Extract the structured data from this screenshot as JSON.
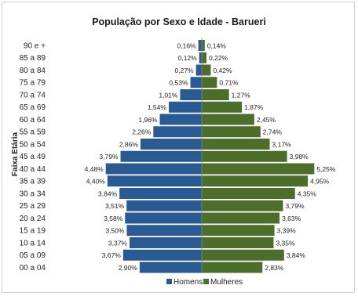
{
  "chart_data": {
    "type": "bar",
    "title": "População por Sexo e Idade - Barueri",
    "ylabel": "Faixa Etária",
    "xlabel": "",
    "categories": [
      "90 e +",
      "85 a 89",
      "80 a 84",
      "75 a 79",
      "70 a 74",
      "65 a 69",
      "60 a 64",
      "55 a 59",
      "50 a 54",
      "45 a 49",
      "40 a 44",
      "35 a 39",
      "30 a 34",
      "25 a 29",
      "20 a 24",
      "15 a 19",
      "10 a 14",
      "05 a 09",
      "00 a 04"
    ],
    "series": [
      {
        "name": "Homens",
        "color": "#2a5a93",
        "values": [
          0.16,
          0.12,
          0.27,
          0.53,
          1.01,
          1.54,
          1.96,
          2.26,
          2.86,
          3.79,
          4.48,
          4.4,
          3.84,
          3.51,
          3.58,
          3.5,
          3.37,
          3.67,
          2.9
        ],
        "labels": [
          "0,16%",
          "0,12%",
          "0,27%",
          "0,53%",
          "1,01%",
          "1,54%",
          "1,96%",
          "2,26%",
          "2,86%",
          "3,79%",
          "4,48%",
          "4,40%",
          "3,84%",
          "3,51%",
          "3,58%",
          "3,50%",
          "3,37%",
          "3,67%",
          "2,90%"
        ]
      },
      {
        "name": "Mulheres",
        "color": "#4b6e2a",
        "values": [
          0.14,
          0.22,
          0.42,
          0.71,
          1.27,
          1.87,
          2.45,
          2.74,
          3.17,
          3.98,
          5.25,
          4.95,
          4.35,
          3.79,
          3.63,
          3.39,
          3.35,
          3.84,
          2.83
        ],
        "labels": [
          "0,14%",
          "0,22%",
          "0,42%",
          "0,71%",
          "1,27%",
          "1,87%",
          "2,45%",
          "2,74%",
          "3,17%",
          "3,98%",
          "5,25%",
          "4,95%",
          "4,35%",
          "3,79%",
          "3,63%",
          "3,39%",
          "3,35%",
          "3,84%",
          "2,83%"
        ]
      }
    ],
    "grid": false,
    "legend_position": "bottom"
  }
}
